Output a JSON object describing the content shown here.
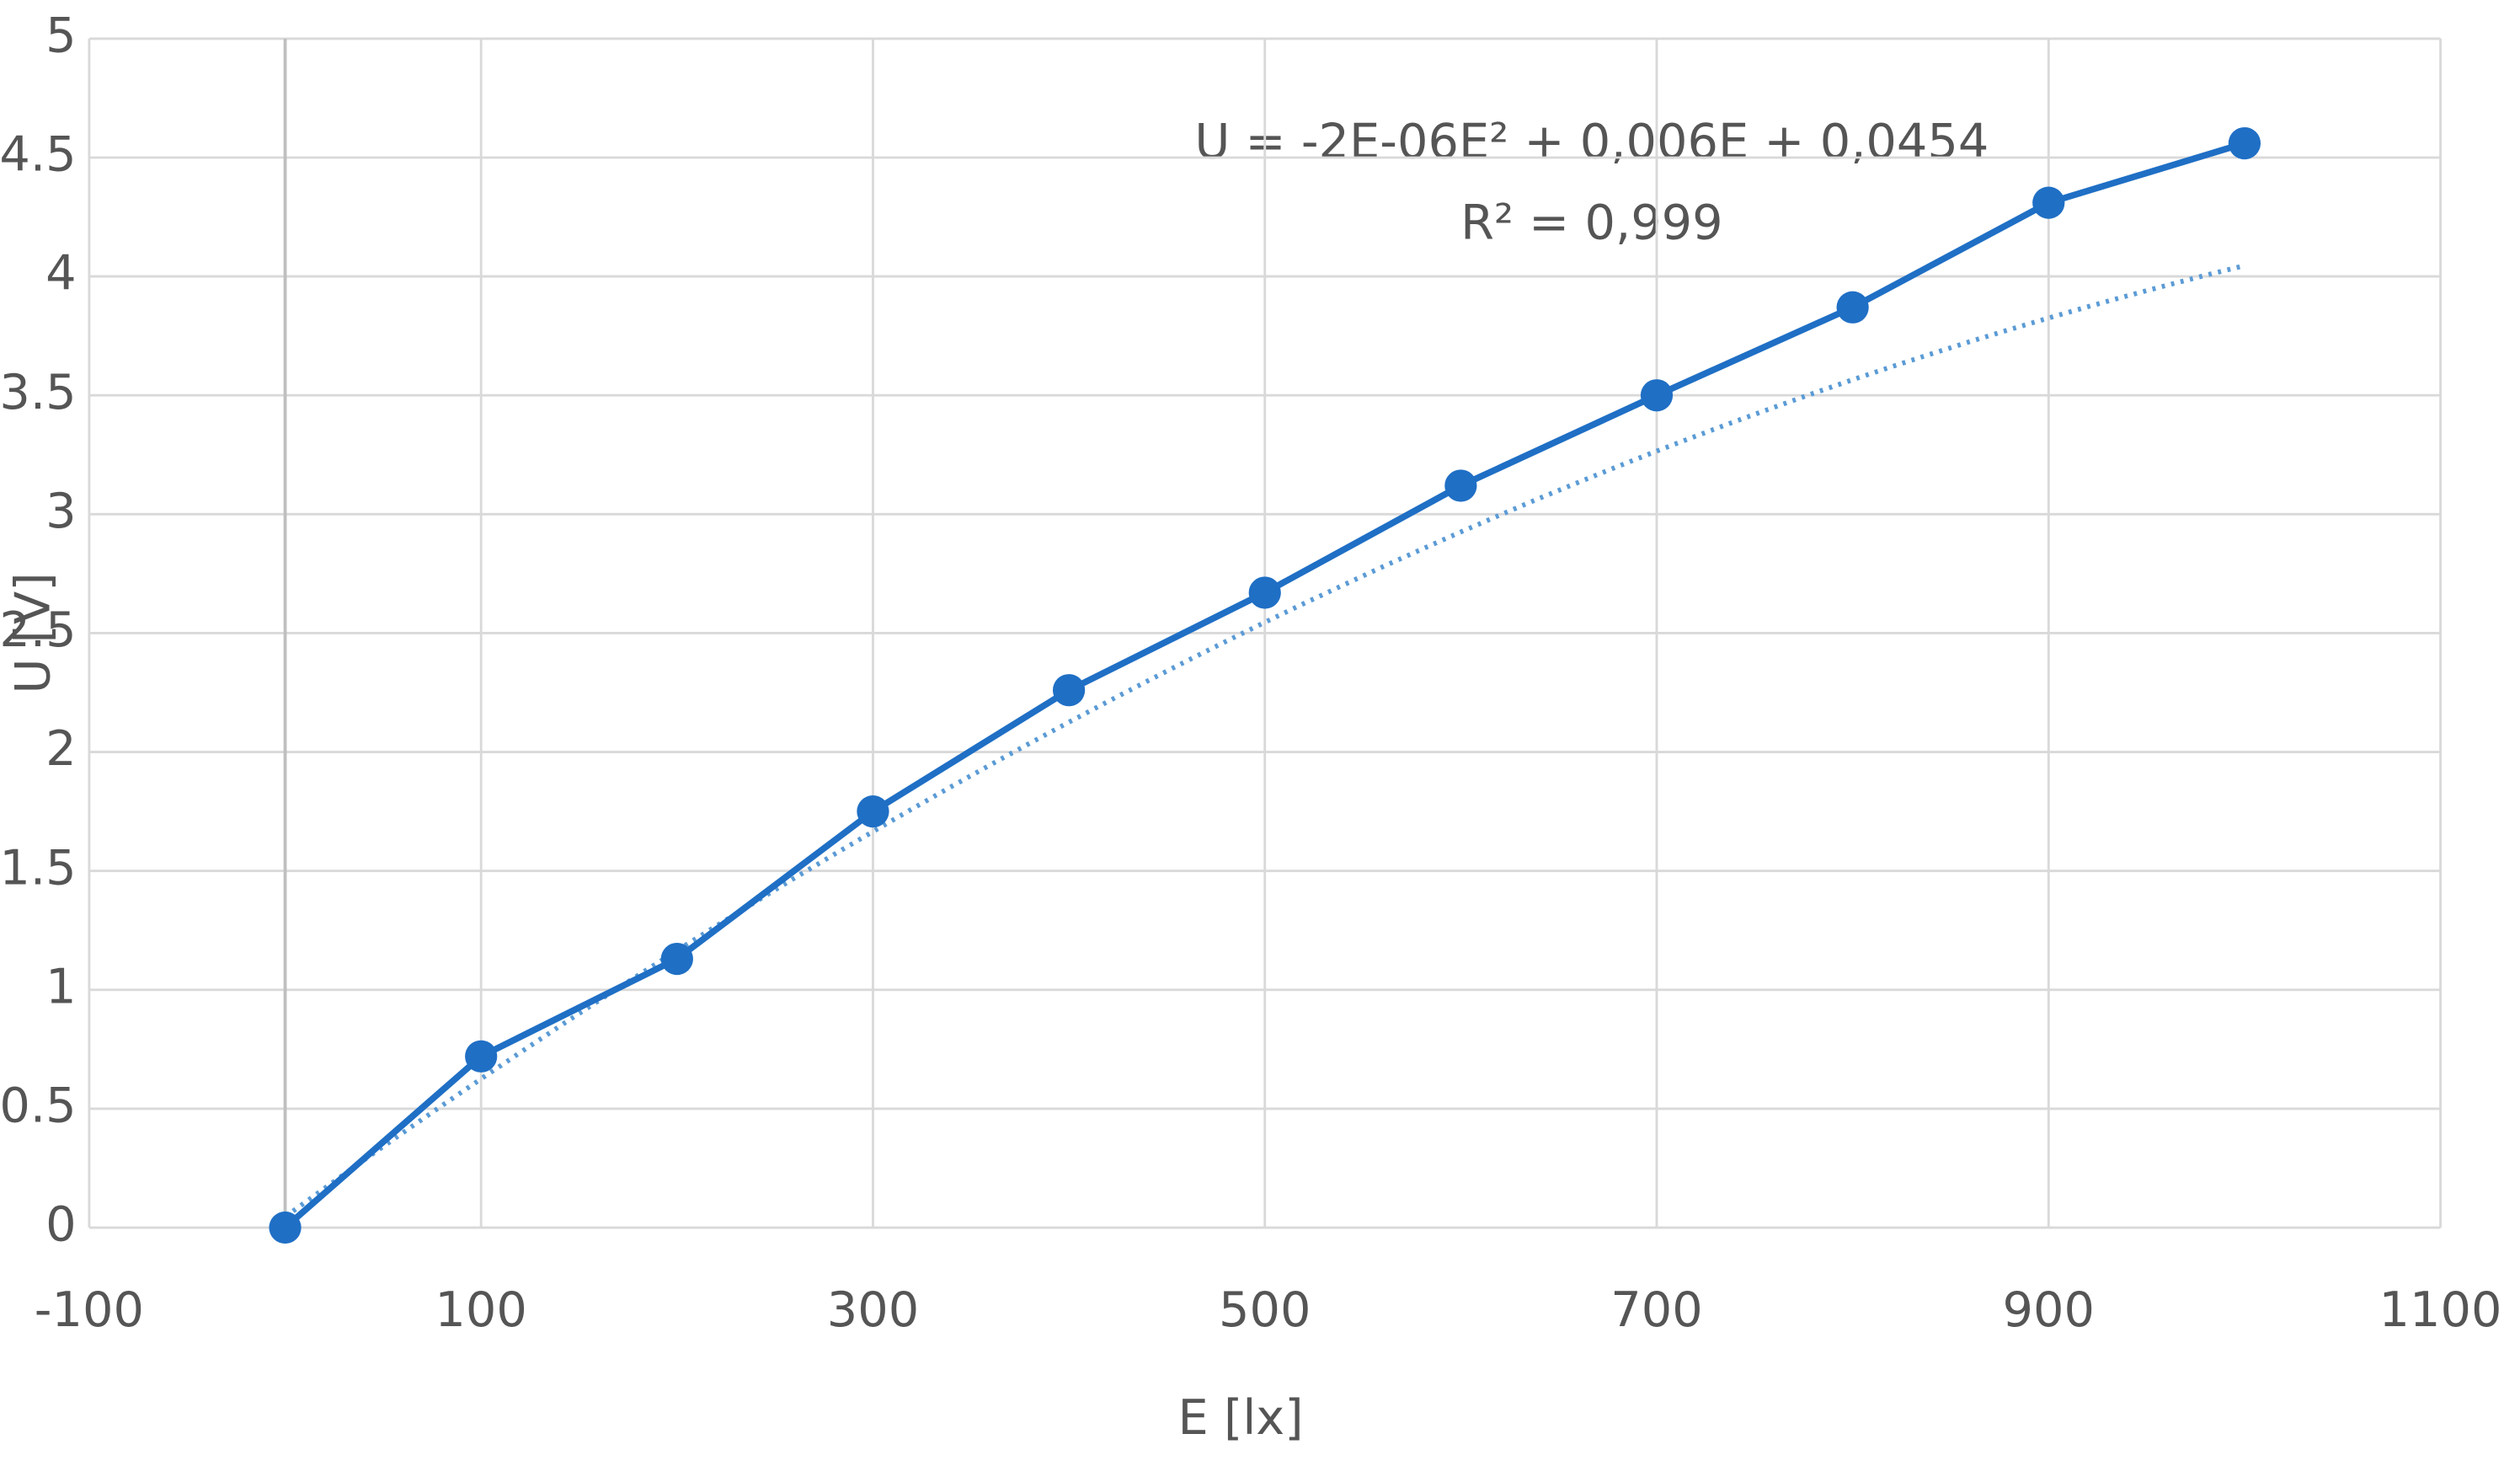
{
  "chart_data": {
    "type": "line",
    "x": [
      0,
      100,
      200,
      300,
      400,
      500,
      600,
      700,
      800,
      900,
      1000
    ],
    "series": [
      {
        "color": "#1f6fc5",
        "values": [
          0,
          0.72,
          1.13,
          1.75,
          2.26,
          2.67,
          3.12,
          3.5,
          3.87,
          4.31,
          4.56
        ]
      }
    ],
    "xlim": [
      -100,
      1100
    ],
    "xticks": [
      -100,
      100,
      300,
      500,
      700,
      900,
      1100
    ],
    "ylim": [
      0,
      5
    ],
    "yticks": [
      0,
      0.5,
      1,
      1.5,
      2,
      2.5,
      3,
      3.5,
      4,
      4.5,
      5
    ],
    "xlabel": "E [lx]",
    "ylabel": "U [V]",
    "grid": true,
    "trendline": {
      "equation": "U = -2E-06E² + 0,006E + 0,0454",
      "r_squared": "R² = 0,999",
      "coefficients": [
        -2e-06,
        0.006,
        0.0454
      ]
    }
  }
}
